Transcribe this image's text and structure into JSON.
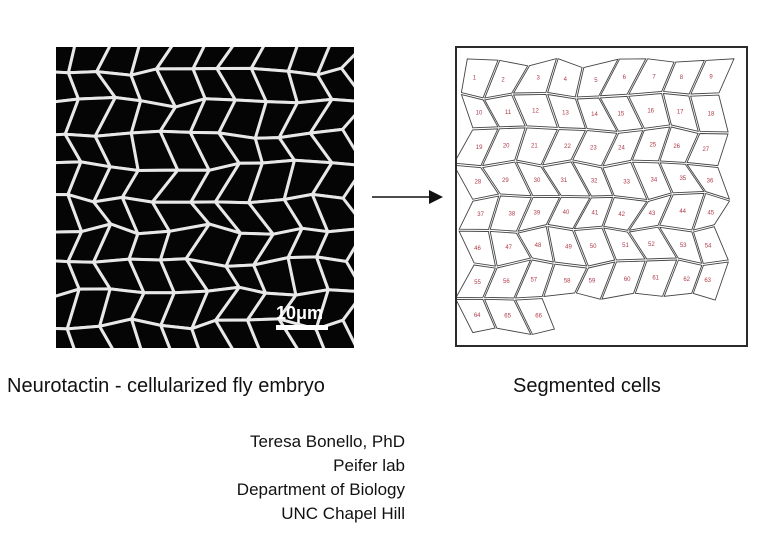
{
  "left_panel": {
    "caption": "Neurotactin - cellularized fly embryo",
    "scale_bar_label": "10μm"
  },
  "right_panel": {
    "caption": "Segmented cells",
    "cell_count": 66,
    "label_color": "#b03a48",
    "outline_color": "#444444"
  },
  "arrow": "→",
  "credits": [
    "Teresa Bonello, PhD",
    "Peifer lab",
    "Department of Biology",
    "UNC Chapel Hill"
  ]
}
